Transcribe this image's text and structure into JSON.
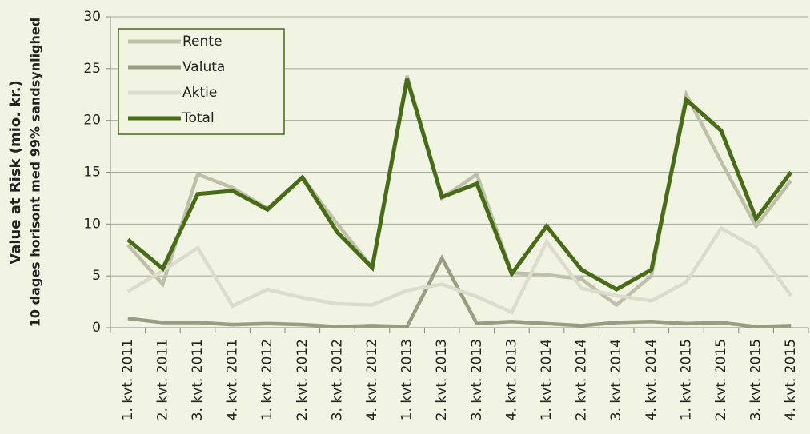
{
  "chart_data": {
    "type": "line",
    "ylabel": [
      "Value at Risk (mio. kr.)",
      "10 dages horisont med 99% sandsynlighed"
    ],
    "categories": [
      "1. kvt. 2011",
      "2. kvt. 2011",
      "3. kvt. 2011",
      "4. kvt. 2011",
      "1. kvt. 2012",
      "2. kvt. 2012",
      "3. kvt. 2012",
      "4. kvt. 2012",
      "1. kvt. 2013",
      "2. kvt. 2013",
      "3. kvt. 2013",
      "4. kvt. 2013",
      "1. kvt. 2014",
      "2. kvt. 2014",
      "3. kvt. 2014",
      "4. kvt. 2014",
      "1. kvt. 2015",
      "2. kvt. 2015",
      "3. kvt. 2015",
      "4. kvt. 2015"
    ],
    "series": [
      {
        "name": "Rente",
        "color": "#bfc0a8",
        "values": [
          8,
          4.2,
          14.8,
          13.5,
          11.5,
          14.5,
          10,
          5.8,
          24.3,
          12.5,
          14.8,
          5.3,
          5.1,
          4.7,
          2.2,
          5,
          22.5,
          16,
          9.8,
          14.2
        ]
      },
      {
        "name": "Valuta",
        "color": "#9a9c82",
        "values": [
          0.9,
          0.5,
          0.5,
          0.3,
          0.4,
          0.3,
          0.1,
          0.2,
          0.1,
          6.7,
          0.4,
          0.6,
          0.4,
          0.2,
          0.5,
          0.6,
          0.4,
          0.5,
          0.1,
          0.2
        ]
      },
      {
        "name": "Aktie",
        "color": "#dcdccc",
        "values": [
          3.5,
          5.5,
          7.7,
          2.1,
          3.7,
          2.9,
          2.3,
          2.2,
          3.6,
          4.2,
          3,
          1.5,
          8.3,
          3.8,
          3.1,
          2.6,
          4.4,
          9.6,
          7.7,
          3.1
        ]
      },
      {
        "name": "Total",
        "color": "#476b17",
        "values": [
          8.5,
          5.7,
          12.9,
          13.2,
          11.4,
          14.5,
          9.2,
          5.8,
          24,
          12.6,
          13.9,
          5.2,
          9.8,
          5.6,
          3.7,
          5.6,
          22,
          19,
          10.5,
          15
        ]
      }
    ],
    "ylim": [
      0,
      30
    ],
    "yticks": [
      0,
      5,
      10,
      15,
      20,
      25,
      30
    ],
    "grid": true,
    "legend": "top-left"
  }
}
